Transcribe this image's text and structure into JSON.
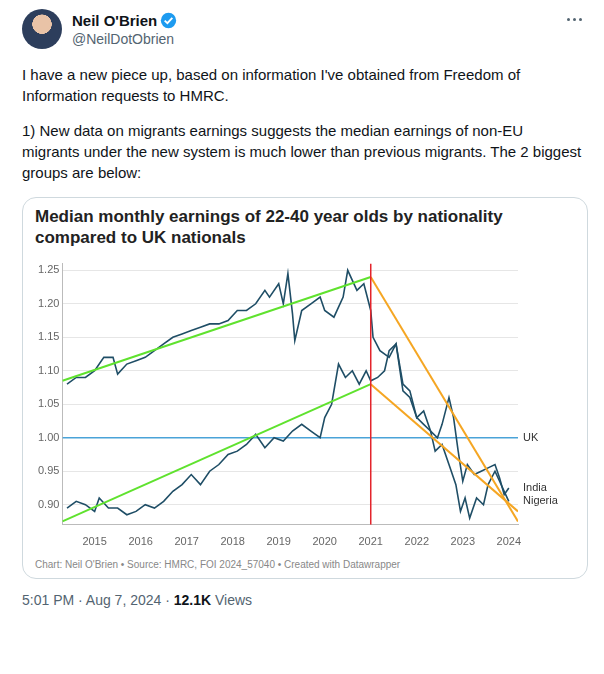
{
  "post": {
    "author": "Neil O'Brien",
    "handle": "@NeilDotObrien",
    "paragraphs": [
      "I have a new piece up, based on information I've obtained from Freedom of Information requests to HMRC.",
      "1) New data on migrants earnings suggests the median earnings of non-EU migrants under the new system is much lower than previous migrants. The 2 biggest groups are below:"
    ],
    "time": "5:01 PM",
    "date": "Aug 7, 2024",
    "views": "12.1K",
    "views_label": "Views",
    "separator": "·"
  },
  "chart_data": {
    "type": "line",
    "title": "Median monthly earnings of 22-40 year olds by nationality compared to UK nationals",
    "source_note": "Chart: Neil O'Brien • Source: HMRC, FOI 2024_57040 • Created with Datawrapper",
    "xlim": [
      2014.3,
      2024.2
    ],
    "xticks": [
      2015,
      2016,
      2017,
      2018,
      2019,
      2020,
      2021,
      2022,
      2023,
      2024
    ],
    "ylim": [
      0.87,
      1.26
    ],
    "yticks": [
      {
        "value": 0.9,
        "label": "0.90"
      },
      0.95,
      {
        "value": 1,
        "label": "1.00"
      },
      1.05,
      {
        "value": 1.1,
        "label": "1.10"
      },
      1.15,
      {
        "value": 1.2,
        "label": "1.20"
      },
      1.25
    ],
    "grid": true,
    "series": [
      {
        "name": "India",
        "color": "#1f4e66",
        "x": [
          2014.4,
          2014.6,
          2014.8,
          2015.0,
          2015.2,
          2015.4,
          2015.5,
          2015.7,
          2015.9,
          2016.1,
          2016.3,
          2016.5,
          2016.7,
          2016.9,
          2017.1,
          2017.3,
          2017.5,
          2017.7,
          2017.9,
          2018.1,
          2018.3,
          2018.5,
          2018.7,
          2018.8,
          2019.0,
          2019.1,
          2019.2,
          2019.3,
          2019.35,
          2019.5,
          2019.7,
          2019.9,
          2020.0,
          2020.2,
          2020.4,
          2020.5,
          2020.7,
          2020.85,
          2021.0,
          2021.05,
          2021.2,
          2021.4,
          2021.55,
          2021.7,
          2021.85,
          2022.0,
          2022.15,
          2022.3,
          2022.45,
          2022.55,
          2022.7,
          2022.8,
          2022.9,
          2023.0,
          2023.1,
          2023.25,
          2023.4,
          2023.55,
          2023.7,
          2023.8,
          2023.9,
          2024.0
        ],
        "values": [
          1.08,
          1.09,
          1.09,
          1.1,
          1.12,
          1.12,
          1.095,
          1.11,
          1.115,
          1.12,
          1.13,
          1.14,
          1.15,
          1.155,
          1.16,
          1.165,
          1.17,
          1.17,
          1.175,
          1.19,
          1.19,
          1.2,
          1.22,
          1.21,
          1.23,
          1.2,
          1.245,
          1.185,
          1.145,
          1.19,
          1.2,
          1.21,
          1.19,
          1.18,
          1.21,
          1.25,
          1.22,
          1.23,
          1.19,
          1.15,
          1.13,
          1.12,
          1.14,
          1.08,
          1.07,
          1.03,
          1.04,
          1.01,
          1.0,
          1.02,
          1.06,
          1.03,
          0.98,
          0.935,
          0.96,
          0.945,
          0.95,
          0.955,
          0.96,
          0.94,
          0.915,
          0.925
        ]
      },
      {
        "name": "Nigeria",
        "color": "#1f4e66",
        "x": [
          2014.4,
          2014.6,
          2014.8,
          2015.0,
          2015.1,
          2015.3,
          2015.5,
          2015.7,
          2015.9,
          2016.1,
          2016.3,
          2016.5,
          2016.7,
          2016.9,
          2017.1,
          2017.3,
          2017.5,
          2017.7,
          2017.9,
          2018.1,
          2018.3,
          2018.5,
          2018.7,
          2018.9,
          2019.1,
          2019.3,
          2019.5,
          2019.7,
          2019.9,
          2020.0,
          2020.15,
          2020.3,
          2020.45,
          2020.6,
          2020.75,
          2020.9,
          2021.0,
          2021.15,
          2021.3,
          2021.4,
          2021.55,
          2021.7,
          2021.85,
          2022.0,
          2022.15,
          2022.3,
          2022.4,
          2022.55,
          2022.7,
          2022.85,
          2022.95,
          2023.05,
          2023.15,
          2023.3,
          2023.45,
          2023.55,
          2023.7,
          2023.8,
          2023.9,
          2024.0
        ],
        "values": [
          0.895,
          0.905,
          0.9,
          0.89,
          0.91,
          0.895,
          0.895,
          0.885,
          0.89,
          0.9,
          0.895,
          0.905,
          0.92,
          0.93,
          0.945,
          0.93,
          0.95,
          0.96,
          0.975,
          0.98,
          0.99,
          1.005,
          0.985,
          1.0,
          0.995,
          1.01,
          1.02,
          1.01,
          1.0,
          1.03,
          1.05,
          1.11,
          1.09,
          1.1,
          1.08,
          1.1,
          1.085,
          1.09,
          1.1,
          1.13,
          1.14,
          1.07,
          1.06,
          1.03,
          1.02,
          1.01,
          0.98,
          0.99,
          0.96,
          0.93,
          0.89,
          0.91,
          0.88,
          0.91,
          0.9,
          0.93,
          0.95,
          0.935,
          0.92,
          0.905
        ]
      }
    ],
    "annotations": [
      {
        "kind": "hline",
        "value": 1,
        "label": "UK",
        "color": "#4aa3d8"
      },
      {
        "kind": "vline",
        "x": 2021,
        "color": "#e3242b"
      },
      {
        "kind": "trend",
        "x": [
          2014.3,
          2021
        ],
        "values": [
          1.085,
          1.24
        ],
        "color": "#5fe22e"
      },
      {
        "kind": "trend",
        "x": [
          2014.3,
          2021
        ],
        "values": [
          0.875,
          1.08
        ],
        "color": "#5fe22e"
      },
      {
        "kind": "trend",
        "x": [
          2021,
          2024.2
        ],
        "values": [
          1.24,
          0.875
        ],
        "color": "#f5a623"
      },
      {
        "kind": "trend",
        "x": [
          2021,
          2024.2
        ],
        "values": [
          1.08,
          0.89
        ],
        "color": "#f5a623"
      }
    ]
  }
}
